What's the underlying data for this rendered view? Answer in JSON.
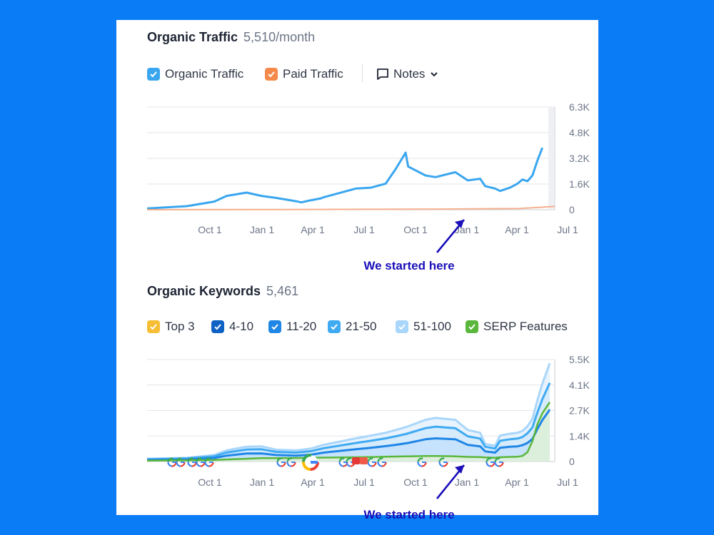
{
  "traffic": {
    "title": "Organic Traffic",
    "value": "5,510/month",
    "legend": [
      {
        "label": "Organic Traffic",
        "color": "#3aa6ef",
        "checked": true
      },
      {
        "label": "Paid Traffic",
        "color": "#f5894a",
        "checked": true
      }
    ],
    "notes_label": "Notes",
    "annotation": "We started here"
  },
  "keywords": {
    "title": "Organic Keywords",
    "value": "5,461",
    "legend": [
      {
        "label": "Top 3",
        "color": "#f7bd34",
        "checked": true
      },
      {
        "label": "4-10",
        "color": "#0d62c4",
        "checked": true
      },
      {
        "label": "11-20",
        "color": "#1f86e6",
        "checked": true
      },
      {
        "label": "21-50",
        "color": "#3faaf2",
        "checked": true
      },
      {
        "label": "51-100",
        "color": "#a9d6fb",
        "checked": true
      },
      {
        "label": "SERP Features",
        "color": "#5ab73c",
        "checked": true
      }
    ],
    "annotation": "We started here"
  },
  "chart_data": [
    {
      "type": "line",
      "title": "Organic Traffic",
      "x_ticks": [
        "Oct 1",
        "Jan 1",
        "Apr 1",
        "Jul 1",
        "Oct 1",
        "Jan 1",
        "Apr 1",
        "Jul 1"
      ],
      "y_ticks": [
        "6.3K",
        "4.8K",
        "3.2K",
        "1.6K",
        "0"
      ],
      "ylim": [
        0,
        6300
      ],
      "grid": true,
      "x_range": [
        0,
        8.2
      ],
      "series": [
        {
          "name": "Organic Traffic",
          "color": "#3aa6ef",
          "x": [
            0,
            0.8,
            1.35,
            1.6,
            2.0,
            2.3,
            2.6,
            3.0,
            3.1,
            3.25,
            3.5,
            3.55,
            4.2,
            4.5,
            4.8,
            5.0,
            5.2,
            5.25,
            5.6,
            5.8,
            6.2,
            6.45,
            6.7,
            6.8,
            7.0,
            7.1,
            7.3,
            7.45,
            7.55,
            7.65,
            7.75,
            7.85,
            7.95
          ],
          "y": [
            80,
            220,
            500,
            850,
            1050,
            850,
            720,
            520,
            450,
            550,
            700,
            760,
            1300,
            1350,
            1600,
            2500,
            3500,
            2650,
            2100,
            2000,
            2300,
            1800,
            1900,
            1450,
            1300,
            1150,
            1350,
            1600,
            1850,
            1750,
            2100,
            3000,
            3800
          ]
        },
        {
          "name": "Paid Traffic",
          "color": "#f5894a",
          "x": [
            0,
            2.0,
            4.0,
            6.0,
            7.5,
            8.2
          ],
          "y": [
            0,
            10,
            20,
            40,
            80,
            200
          ]
        }
      ]
    },
    {
      "type": "area",
      "title": "Organic Keywords",
      "x_ticks": [
        "Oct 1",
        "Jan 1",
        "Apr 1",
        "Jul 1",
        "Oct 1",
        "Jan 1",
        "Apr 1",
        "Jul 1"
      ],
      "y_ticks": [
        "5.5K",
        "4.1K",
        "2.7K",
        "1.4K",
        "0"
      ],
      "ylim": [
        0,
        5500
      ],
      "grid": true,
      "x": [
        0,
        0.8,
        1.35,
        1.6,
        2.0,
        2.3,
        2.6,
        3.0,
        3.3,
        3.55,
        4.2,
        4.5,
        4.8,
        5.0,
        5.2,
        5.25,
        5.6,
        5.8,
        6.2,
        6.45,
        6.7,
        6.8,
        7.0,
        7.1,
        7.3,
        7.45,
        7.55,
        7.65,
        7.75,
        7.85,
        7.95,
        8.1
      ],
      "series": [
        {
          "name": "51-100",
          "color": "#a9d6fb",
          "values": [
            150,
            200,
            350,
            600,
            800,
            820,
            640,
            600,
            700,
            900,
            1250,
            1400,
            1550,
            1700,
            1850,
            1900,
            2250,
            2350,
            2250,
            1700,
            1550,
            950,
            850,
            1400,
            1500,
            1550,
            1650,
            1900,
            2300,
            3300,
            4200,
            5300
          ]
        },
        {
          "name": "21-50",
          "color": "#3faaf2",
          "values": [
            120,
            160,
            280,
            480,
            650,
            660,
            520,
            480,
            560,
            720,
            1000,
            1120,
            1250,
            1360,
            1480,
            1520,
            1800,
            1880,
            1800,
            1360,
            1240,
            800,
            700,
            1120,
            1200,
            1240,
            1320,
            1520,
            1840,
            2640,
            3360,
            4240
          ]
        },
        {
          "name": "11-20",
          "color": "#1f86e6",
          "values": [
            80,
            110,
            190,
            320,
            430,
            440,
            350,
            320,
            370,
            480,
            660,
            740,
            830,
            900,
            980,
            1000,
            1200,
            1250,
            1200,
            900,
            820,
            550,
            480,
            740,
            800,
            820,
            880,
            1000,
            1220,
            1750,
            2230,
            2800
          ]
        },
        {
          "name": "SERP Features",
          "color": "#5ab73c",
          "values": [
            50,
            60,
            80,
            110,
            150,
            180,
            180,
            190,
            200,
            210,
            230,
            240,
            260,
            270,
            280,
            280,
            300,
            300,
            280,
            250,
            240,
            220,
            200,
            230,
            250,
            260,
            300,
            500,
            1100,
            2000,
            2600,
            3200
          ]
        }
      ]
    }
  ]
}
